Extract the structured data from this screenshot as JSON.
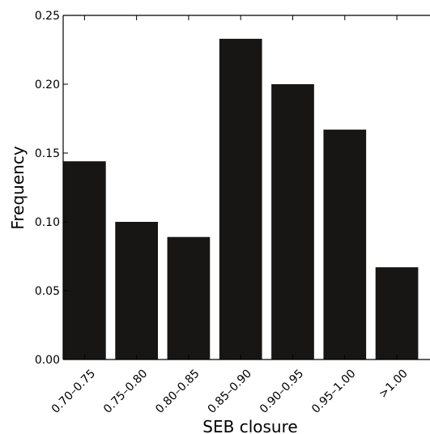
{
  "chart_data": {
    "type": "bar",
    "categories": [
      "0.70–0.75",
      "0.75–0.80",
      "0.80–0.85",
      "0.85–0.90",
      "0.90–0.95",
      "0.95–1.00",
      ">1.00"
    ],
    "values": [
      0.144,
      0.1,
      0.089,
      0.233,
      0.2,
      0.167,
      0.067
    ],
    "xlabel": "SEB closure",
    "ylabel": "Frequency",
    "ylim": [
      0,
      0.25
    ],
    "yticks": [
      "0.00",
      "0.05",
      "0.10",
      "0.15",
      "0.20",
      "0.25"
    ],
    "grid": false,
    "bar_color": "#171614"
  }
}
